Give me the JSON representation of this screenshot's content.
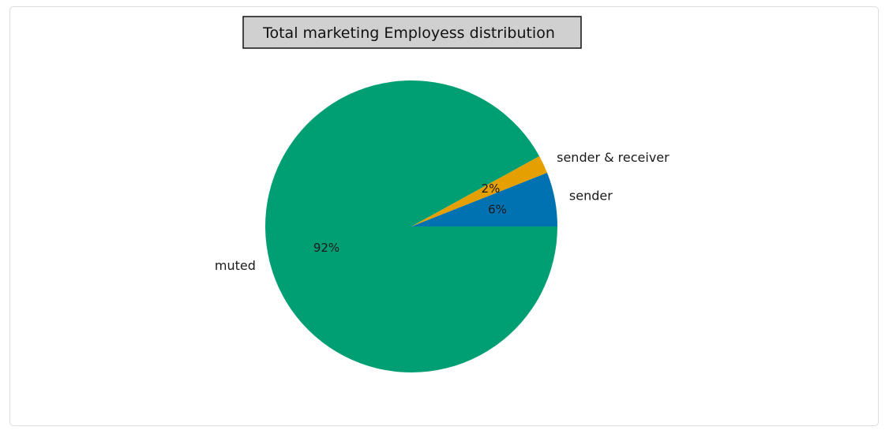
{
  "chart_data": {
    "type": "pie",
    "title": "Total marketing Employess distribution",
    "start_angle_deg": 0,
    "direction": "counterclockwise",
    "slices": [
      {
        "label": "sender",
        "value": 6,
        "pct_label": "6%",
        "color": "#0072b2"
      },
      {
        "label": "sender & receiver",
        "value": 2,
        "pct_label": "2%",
        "color": "#e69f00"
      },
      {
        "label": "muted",
        "value": 92,
        "pct_label": "92%",
        "color": "#009e73"
      }
    ]
  },
  "colors": {
    "title_box_fill": "#d0d0d0",
    "title_box_border": "#111111"
  }
}
